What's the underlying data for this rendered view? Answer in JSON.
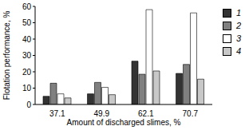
{
  "chart_data": {
    "type": "bar",
    "x_label": "Amount of discharged slimes, %",
    "y_label": "Flotation performance, %",
    "categories": [
      "37.1",
      "49.9",
      "62.1",
      "70.7"
    ],
    "series": [
      {
        "name": "1",
        "color": "#333333",
        "values": [
          5,
          6.5,
          26.5,
          19
        ]
      },
      {
        "name": "2",
        "color": "#808080",
        "values": [
          13,
          13.5,
          18.5,
          24.5
        ]
      },
      {
        "name": "3",
        "color": "#ffffff",
        "values": [
          6.5,
          10.5,
          58,
          56
        ]
      },
      {
        "name": "4",
        "color": "#c8c8c8",
        "values": [
          4,
          6,
          20.5,
          15.5
        ]
      }
    ],
    "ylim": [
      0,
      60
    ],
    "yticks": [
      0,
      10,
      20,
      30,
      40,
      50,
      60
    ],
    "grid": false,
    "legend": "upper right"
  }
}
